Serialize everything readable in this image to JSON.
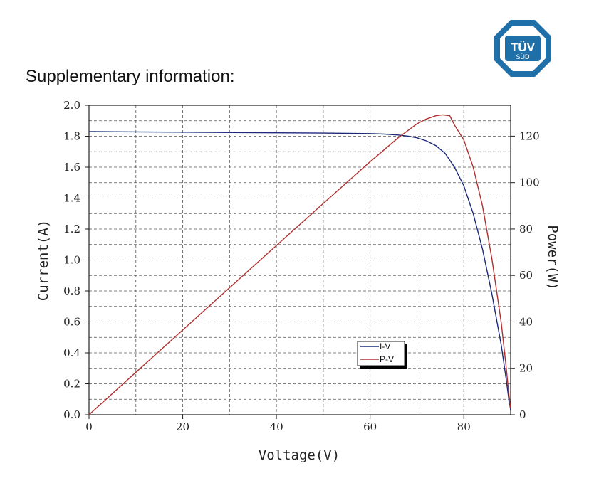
{
  "heading": "Supplementary information:",
  "logo": {
    "top_text": "TÜV",
    "bottom_text": "SÜD",
    "color": "#1f6fa8"
  },
  "chart_data": {
    "type": "line",
    "title": "",
    "xlabel": "Voltage(V)",
    "ylabel": "Current(A)",
    "y2label": "Power(W)",
    "xlim": [
      0,
      90
    ],
    "ylim": [
      0,
      2.0
    ],
    "y2lim": [
      0,
      133.3
    ],
    "x_ticks": [
      0,
      20,
      40,
      60,
      80
    ],
    "y_ticks": [
      0.0,
      0.2,
      0.4,
      0.6,
      0.8,
      1.0,
      1.2,
      1.4,
      1.6,
      1.8,
      2.0
    ],
    "y2_ticks": [
      0,
      20,
      40,
      60,
      80,
      100,
      120
    ],
    "x_tick_labels": [
      "0",
      "20",
      "40",
      "60",
      "80"
    ],
    "y_tick_labels": [
      "0.0",
      "0.2",
      "0.4",
      "0.6",
      "0.8",
      "1.0",
      "1.2",
      "1.4",
      "1.6",
      "1.8",
      "2.0"
    ],
    "y2_tick_labels": [
      "0",
      "20",
      "40",
      "60",
      "80",
      "100",
      "120"
    ],
    "grid": true,
    "legend_position": "bottom-center",
    "series": [
      {
        "name": "I-V",
        "axis": "left",
        "color": "#1c2a7a",
        "x": [
          0,
          10,
          20,
          30,
          40,
          50,
          55,
          60,
          63,
          66,
          68,
          70,
          72,
          74,
          76,
          78,
          80,
          82,
          84,
          86,
          88,
          89,
          89.6,
          90
        ],
        "y": [
          1.83,
          1.828,
          1.826,
          1.824,
          1.822,
          1.82,
          1.819,
          1.817,
          1.814,
          1.808,
          1.801,
          1.79,
          1.77,
          1.74,
          1.69,
          1.6,
          1.48,
          1.3,
          1.07,
          0.78,
          0.45,
          0.24,
          0.1,
          0.03
        ]
      },
      {
        "name": "P-V",
        "axis": "right",
        "color": "#b03030",
        "x": [
          0,
          10,
          20,
          30,
          40,
          50,
          60,
          66,
          70,
          72,
          74,
          75.5,
          77,
          78,
          80,
          82,
          84,
          86,
          88,
          89,
          89.6,
          90
        ],
        "y": [
          0,
          18.3,
          36.5,
          54.7,
          72.9,
          91.0,
          109.0,
          119.3,
          125.3,
          127.4,
          128.8,
          129.2,
          128.8,
          124.8,
          118.4,
          106.6,
          89.9,
          67.1,
          39.6,
          21.4,
          9.0,
          2.7
        ]
      }
    ]
  }
}
